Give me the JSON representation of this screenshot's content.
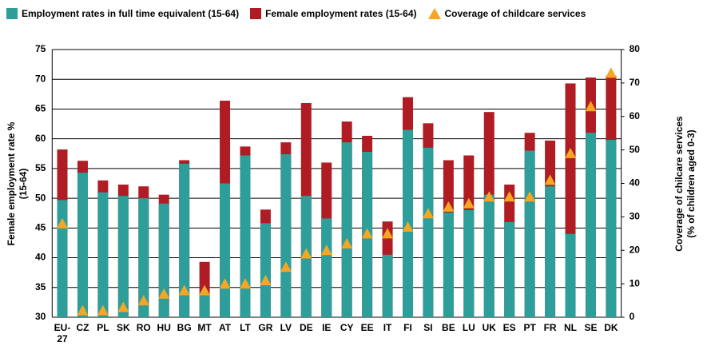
{
  "chart_data": {
    "type": "bar",
    "ylabel": "Female employment rate %\n(15-64)",
    "y2label": "Coverage of chilcare services\n(% of children aged 0-3)",
    "categories": [
      "EU-\n27",
      "CZ",
      "PL",
      "SK",
      "RO",
      "HU",
      "BG",
      "MT",
      "AT",
      "LT",
      "GR",
      "LV",
      "DE",
      "IE",
      "CY",
      "EE",
      "IT",
      "FI",
      "SI",
      "BE",
      "LU",
      "UK",
      "ES",
      "PT",
      "FR",
      "NL",
      "SE",
      "DK"
    ],
    "series": [
      {
        "name": "Employment rates in full time equivalent (15-64)",
        "color": "#2e9e9a",
        "values": [
          49.7,
          54.3,
          51,
          50.4,
          50,
          49.1,
          55.8,
          33.8,
          52.5,
          57.2,
          45.8,
          57.4,
          50.4,
          46.6,
          59.4,
          57.8,
          40.5,
          61.5,
          58.5,
          47.6,
          48,
          50.6,
          46,
          58,
          52,
          44,
          61,
          59.8
        ]
      },
      {
        "name": "Female employment rates (15-64)",
        "color": "#b01c24",
        "values": [
          58.2,
          56.3,
          53,
          52.3,
          52,
          50.6,
          56.4,
          39.3,
          66.4,
          58.7,
          48.1,
          59.4,
          66,
          56,
          62.9,
          60.5,
          46.1,
          67,
          62.6,
          56.4,
          57.2,
          64.5,
          52.3,
          61,
          59.7,
          69.3,
          70.3,
          70.6
        ]
      },
      {
        "name": "Coverage of childcare services",
        "color": "#f5a623",
        "type": "scatter",
        "axis": "y2",
        "values": [
          28,
          2,
          2,
          3,
          5,
          7,
          8,
          8,
          10,
          10,
          11,
          15,
          19,
          20,
          22,
          25,
          25,
          27,
          31,
          33,
          34,
          36,
          36,
          36,
          41,
          49,
          63,
          73
        ]
      }
    ],
    "ylim": [
      30,
      75
    ],
    "yticks": [
      30,
      35,
      40,
      45,
      50,
      55,
      60,
      65,
      70,
      75
    ],
    "y2lim": [
      0,
      80
    ],
    "y2ticks": [
      0,
      10,
      20,
      30,
      40,
      50,
      60,
      70,
      80
    ],
    "grid": true
  }
}
